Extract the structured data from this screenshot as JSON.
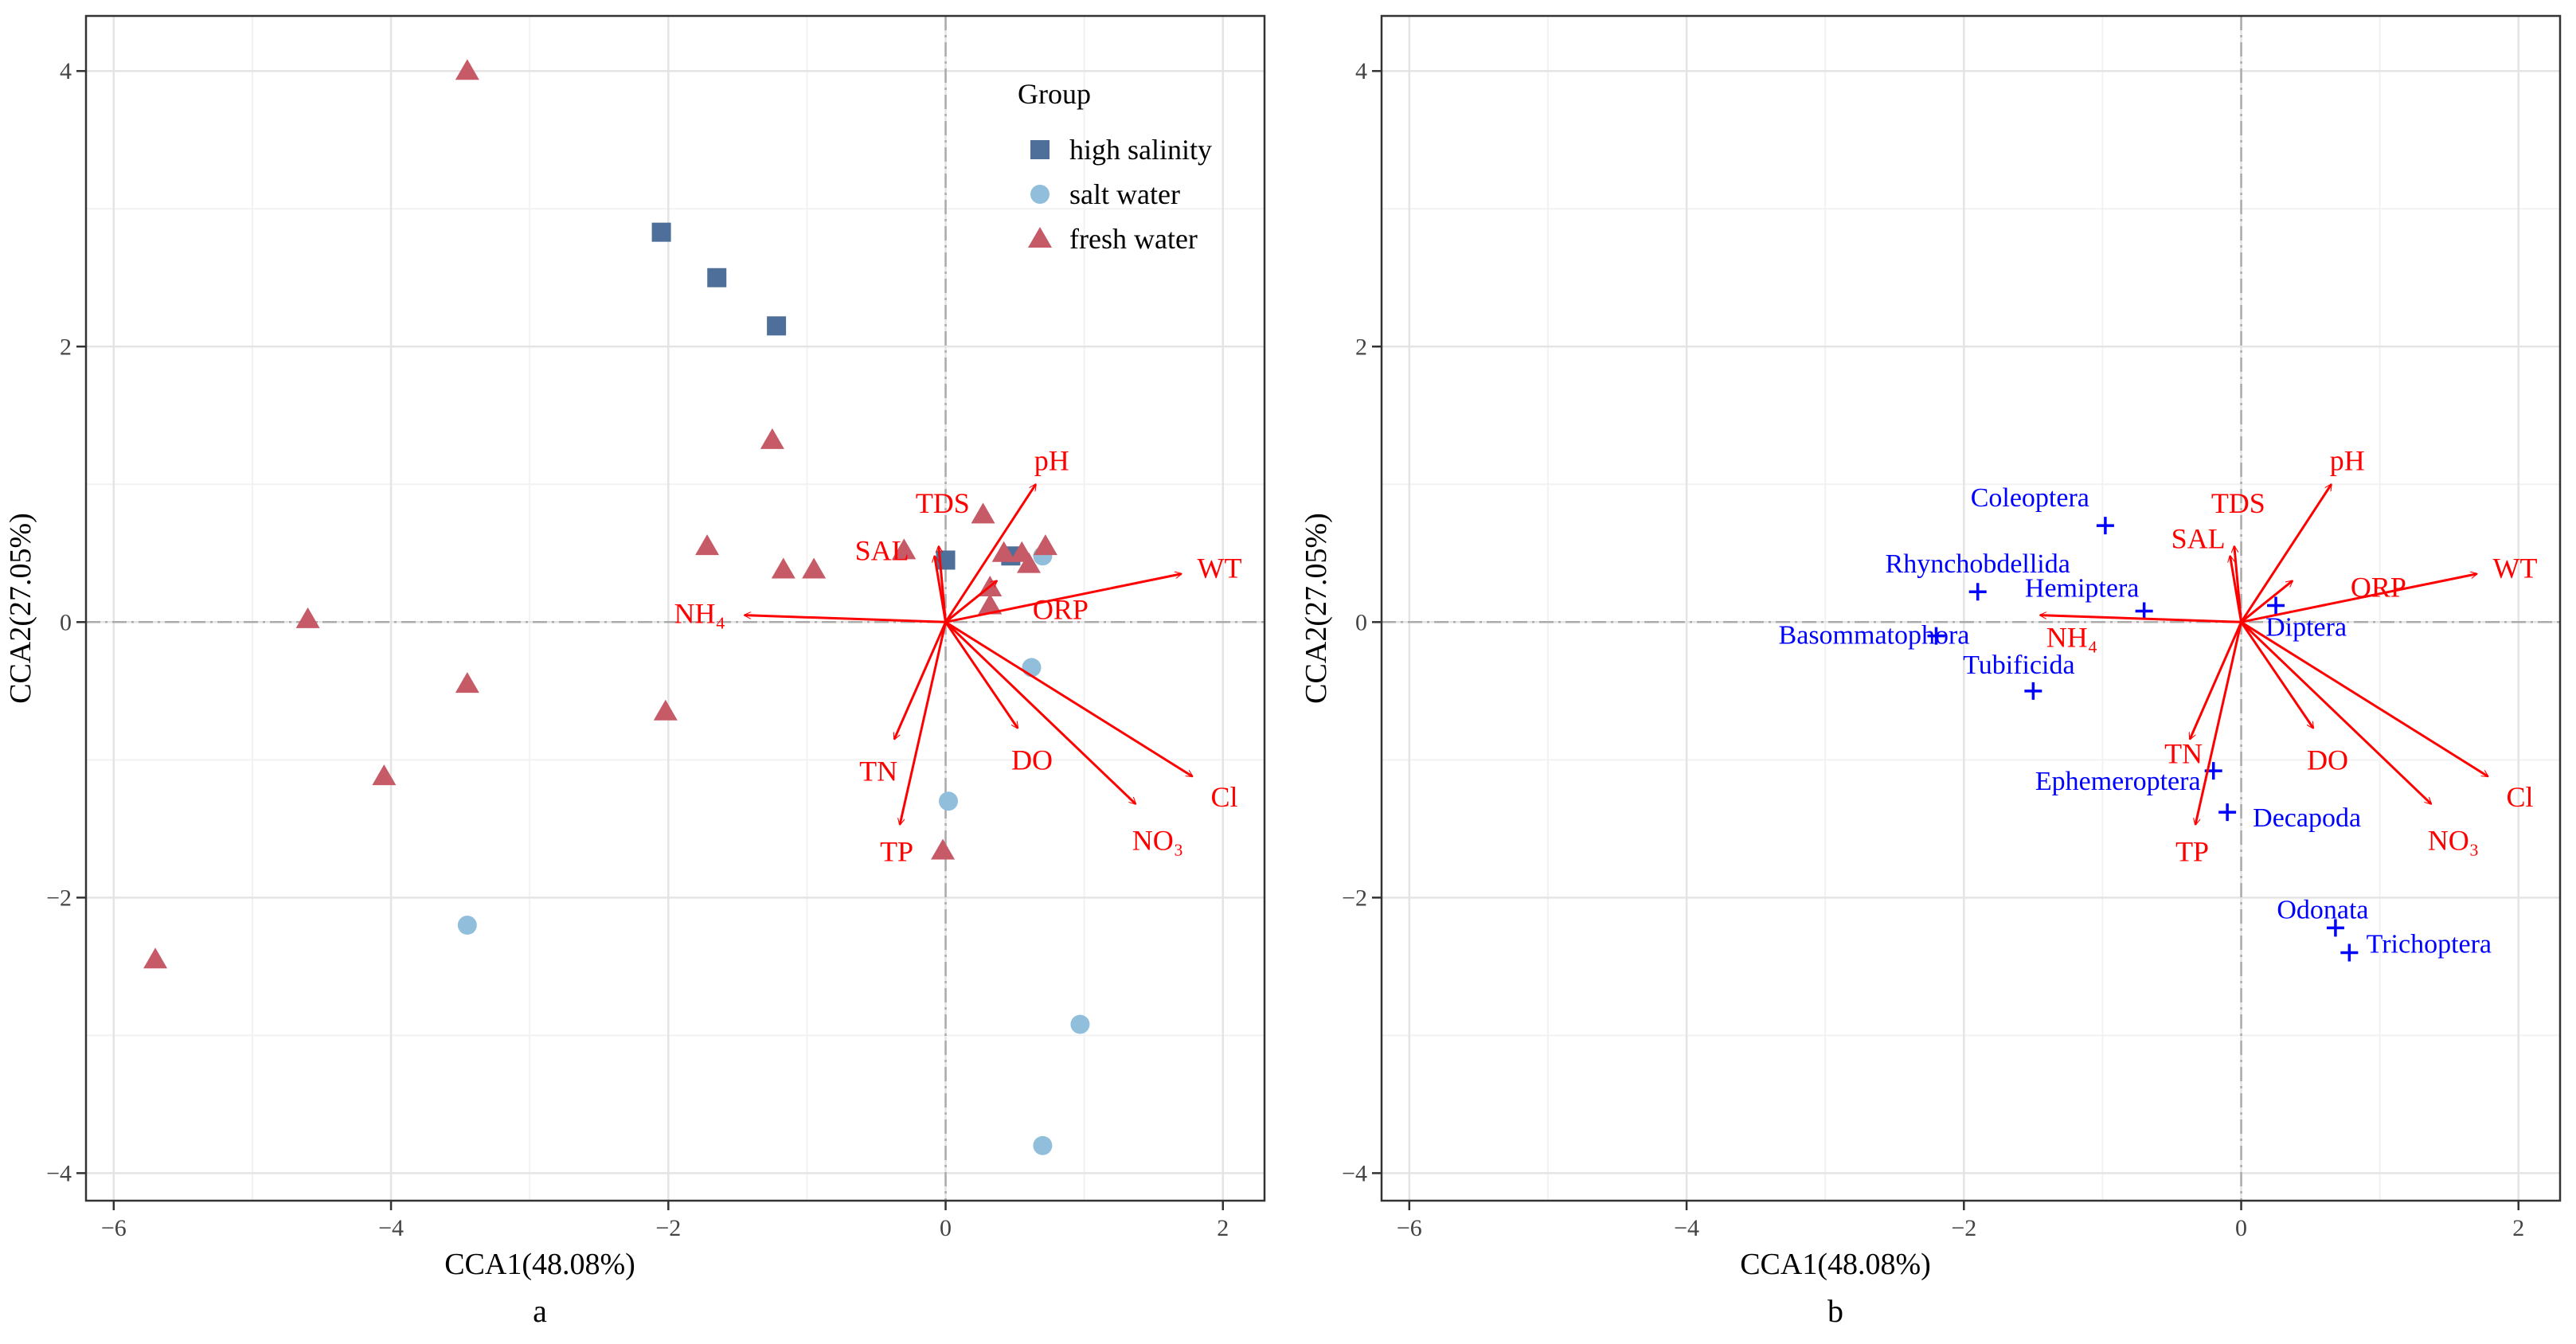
{
  "chart_data": [
    {
      "type": "scatter",
      "panel_label": "a",
      "xlabel": "CCA1(48.08%)",
      "ylabel": "CCA2(27.05%)",
      "xlim": [
        -6.2,
        2.3
      ],
      "ylim": [
        -4.2,
        4.4
      ],
      "x_ticks": [
        -6,
        -4,
        -2,
        0,
        2
      ],
      "y_ticks": [
        -4,
        -2,
        0,
        2,
        4
      ],
      "grid": true,
      "legend": {
        "title": "Group",
        "position": "top-right",
        "entries": [
          {
            "label": "high salinity",
            "shape": "square",
            "color": "#4E6F99"
          },
          {
            "label": "salt water",
            "shape": "circle",
            "color": "#91BFDB"
          },
          {
            "label": "fresh water",
            "shape": "triangle",
            "color": "#C65A67"
          }
        ]
      },
      "series": [
        {
          "name": "high salinity",
          "shape": "square",
          "color": "#4E6F99",
          "points": [
            [
              -2.05,
              2.83
            ],
            [
              -1.65,
              2.5
            ],
            [
              -1.22,
              2.15
            ],
            [
              0.0,
              0.45
            ],
            [
              0.47,
              0.48
            ]
          ]
        },
        {
          "name": "salt water",
          "shape": "circle",
          "color": "#91BFDB",
          "points": [
            [
              -3.45,
              -2.2
            ],
            [
              0.02,
              -1.3
            ],
            [
              0.62,
              -0.33
            ],
            [
              0.97,
              -2.92
            ],
            [
              0.7,
              -3.8
            ],
            [
              0.7,
              0.48
            ]
          ]
        },
        {
          "name": "fresh water",
          "shape": "triangle",
          "color": "#C65A67",
          "points": [
            [
              -3.45,
              4.0
            ],
            [
              -1.25,
              1.32
            ],
            [
              -1.72,
              0.55
            ],
            [
              -1.17,
              0.38
            ],
            [
              -0.95,
              0.38
            ],
            [
              -4.6,
              0.02
            ],
            [
              -3.45,
              -0.45
            ],
            [
              -2.02,
              -0.65
            ],
            [
              -4.05,
              -1.12
            ],
            [
              -5.7,
              -2.45
            ],
            [
              -0.02,
              -1.66
            ],
            [
              0.27,
              0.78
            ],
            [
              -0.3,
              0.52
            ],
            [
              0.32,
              0.25
            ],
            [
              0.55,
              0.5
            ],
            [
              0.72,
              0.55
            ],
            [
              0.32,
              0.12
            ],
            [
              0.6,
              0.42
            ],
            [
              0.42,
              0.5
            ]
          ]
        }
      ],
      "arrows": [
        {
          "label": "pH",
          "x": 0.65,
          "y": 1.0
        },
        {
          "label": "TDS",
          "x": -0.05,
          "y": 0.55
        },
        {
          "label": "SAL",
          "x": -0.08,
          "y": 0.48
        },
        {
          "label": "ORP",
          "x": 0.37,
          "y": 0.3
        },
        {
          "label": "WT",
          "x": 1.7,
          "y": 0.35
        },
        {
          "label": "NH₄",
          "x": -1.45,
          "y": 0.05
        },
        {
          "label": "TN",
          "x": -0.37,
          "y": -0.85
        },
        {
          "label": "TP",
          "x": -0.33,
          "y": -1.47
        },
        {
          "label": "DO",
          "x": 0.52,
          "y": -0.77
        },
        {
          "label": "NO₃",
          "x": 1.37,
          "y": -1.32
        },
        {
          "label": "Cl",
          "x": 1.78,
          "y": -1.12
        }
      ],
      "arrow_color": "#FF0000"
    },
    {
      "type": "scatter",
      "panel_label": "b",
      "xlabel": "CCA1(48.08%)",
      "ylabel": "CCA2(27.05%)",
      "xlim": [
        -6.2,
        2.3
      ],
      "ylim": [
        -4.2,
        4.4
      ],
      "x_ticks": [
        -6,
        -4,
        -2,
        0,
        2
      ],
      "y_ticks": [
        -4,
        -2,
        0,
        2,
        4
      ],
      "grid": true,
      "species_color": "#0000FF",
      "species": [
        {
          "label": "Coleoptera",
          "x": -0.98,
          "y": 0.7
        },
        {
          "label": "Rhynchobdellida",
          "x": -1.9,
          "y": 0.22
        },
        {
          "label": "Hemiptera",
          "x": -0.7,
          "y": 0.08
        },
        {
          "label": "Basommatophora",
          "x": -2.2,
          "y": -0.1
        },
        {
          "label": "Tubificida",
          "x": -1.5,
          "y": -0.5
        },
        {
          "label": "Diptera",
          "x": 0.25,
          "y": 0.12
        },
        {
          "label": "Ephemeroptera",
          "x": -0.2,
          "y": -1.08
        },
        {
          "label": "Decapoda",
          "x": -0.1,
          "y": -1.38
        },
        {
          "label": "Odonata",
          "x": 0.68,
          "y": -2.22
        },
        {
          "label": "Trichoptera",
          "x": 0.78,
          "y": -2.4
        }
      ],
      "arrows": [
        {
          "label": "pH",
          "x": 0.65,
          "y": 1.0
        },
        {
          "label": "TDS",
          "x": -0.05,
          "y": 0.55
        },
        {
          "label": "SAL",
          "x": -0.08,
          "y": 0.48
        },
        {
          "label": "ORP",
          "x": 0.37,
          "y": 0.3
        },
        {
          "label": "WT",
          "x": 1.7,
          "y": 0.35
        },
        {
          "label": "NH₄",
          "x": -1.45,
          "y": 0.05
        },
        {
          "label": "TN",
          "x": -0.37,
          "y": -0.85
        },
        {
          "label": "TP",
          "x": -0.33,
          "y": -1.47
        },
        {
          "label": "DO",
          "x": 0.52,
          "y": -0.77
        },
        {
          "label": "NO₃",
          "x": 1.37,
          "y": -1.32
        },
        {
          "label": "Cl",
          "x": 1.78,
          "y": -1.12
        }
      ],
      "arrow_color": "#FF0000"
    }
  ]
}
